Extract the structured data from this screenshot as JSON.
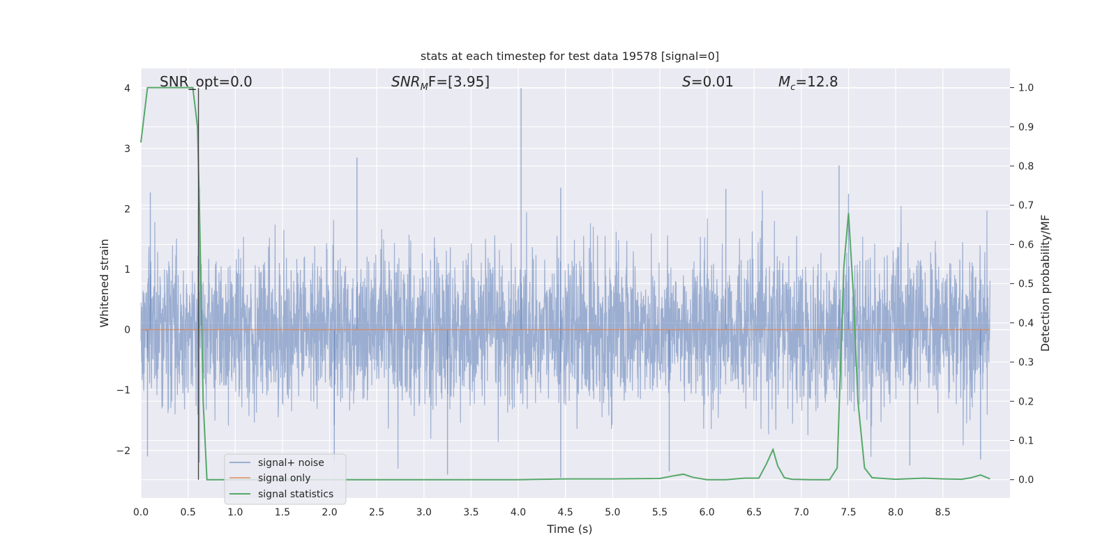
{
  "chart_data": {
    "type": "line",
    "title": "stats at each timestep for test data 19578 [signal=0]",
    "xlabel": "Time (s)",
    "ylabel": "Whitened strain",
    "y2label": "Detection probability/MF",
    "xlim": [
      0.0,
      9.0
    ],
    "ylim": [
      -2.8,
      4.3
    ],
    "y2lim": [
      -0.048,
      1.048
    ],
    "x_ticks": [
      0.0,
      0.5,
      1.0,
      1.5,
      2.0,
      2.5,
      3.0,
      3.5,
      4.0,
      4.5,
      5.0,
      5.5,
      6.0,
      6.5,
      7.0,
      7.5,
      8.0,
      8.5
    ],
    "x_tick_labels": [
      "0.0",
      "0.5",
      "1.0",
      "1.5",
      "2.0",
      "2.5",
      "3.0",
      "3.5",
      "4.0",
      "4.5",
      "5.0",
      "5.5",
      "6.0",
      "6.5",
      "7.0",
      "7.5",
      "8.0",
      "8.5"
    ],
    "y_ticks": [
      -2,
      -1,
      0,
      1,
      2,
      3,
      4
    ],
    "y_tick_labels": [
      "−2",
      "−1",
      "0",
      "1",
      "2",
      "3",
      "4"
    ],
    "y2_ticks": [
      0.0,
      0.1,
      0.2,
      0.3,
      0.4,
      0.5,
      0.6,
      0.7,
      0.8,
      0.9,
      1.0
    ],
    "y2_tick_labels": [
      "0.0",
      "0.1",
      "0.2",
      "0.3",
      "0.4",
      "0.5",
      "0.6",
      "0.7",
      "0.8",
      "0.9",
      "1.0"
    ],
    "grid": true,
    "legend_position": "lower-left",
    "legend": [
      {
        "label": "signal+ noise",
        "color": "#4c72b0"
      },
      {
        "label": "signal only",
        "color": "#dd8452"
      },
      {
        "label": "signal statistics",
        "color": "#55a868"
      }
    ],
    "annotations": {
      "snr_opt": "SNR_opt=0.0",
      "snr_mf_base": "SNR",
      "snr_mf_sub": "M",
      "snr_mf_rest": "F=[3.95]",
      "s_base": "S",
      "s_rest": "=0.01",
      "mc_base": "M",
      "mc_sub": "c",
      "mc_rest": "=12.8"
    },
    "marker_line_x": 0.61,
    "series": [
      {
        "name": "signal+ noise",
        "axis": "left",
        "color": "#4c72b0",
        "description_bound": 1.2,
        "spikes": [
          [
            4.03,
            4.0
          ],
          [
            2.29,
            2.85
          ],
          [
            7.4,
            2.72
          ],
          [
            0.1,
            2.27
          ],
          [
            0.62,
            2.35
          ],
          [
            4.45,
            2.35
          ],
          [
            6.2,
            2.33
          ],
          [
            7.5,
            2.25
          ],
          [
            0.62,
            -2.2
          ],
          [
            5.6,
            -2.35
          ],
          [
            3.25,
            -2.4
          ],
          [
            4.45,
            -2.45
          ],
          [
            8.9,
            -2.15
          ],
          [
            0.07,
            -2.1
          ],
          [
            8.15,
            -2.25
          ],
          [
            2.05,
            -2.2
          ]
        ]
      },
      {
        "name": "signal only",
        "axis": "left",
        "color": "#dd8452",
        "x": [
          0.0,
          9.0
        ],
        "y": [
          0.0,
          0.0
        ]
      },
      {
        "name": "signal statistics",
        "axis": "right",
        "color": "#55a868",
        "x": [
          0.0,
          0.07,
          0.12,
          0.2,
          0.3,
          0.4,
          0.5,
          0.55,
          0.6,
          0.62,
          0.66,
          0.7,
          1.0,
          2.0,
          3.0,
          4.0,
          4.5,
          5.0,
          5.5,
          5.65,
          5.75,
          5.85,
          6.0,
          6.2,
          6.4,
          6.55,
          6.63,
          6.7,
          6.75,
          6.82,
          6.9,
          7.1,
          7.3,
          7.38,
          7.45,
          7.5,
          7.55,
          7.6,
          7.67,
          7.75,
          8.0,
          8.3,
          8.5,
          8.7,
          8.8,
          8.9,
          9.0
        ],
        "y": [
          0.86,
          1.0,
          1.0,
          1.0,
          1.0,
          1.0,
          1.0,
          1.0,
          0.9,
          0.7,
          0.2,
          0.0,
          0.0,
          0.0,
          0.0,
          0.0,
          0.002,
          0.002,
          0.003,
          0.01,
          0.014,
          0.006,
          0.0,
          0.0,
          0.004,
          0.004,
          0.04,
          0.077,
          0.035,
          0.005,
          0.001,
          0.0,
          0.0,
          0.03,
          0.54,
          0.68,
          0.48,
          0.2,
          0.03,
          0.005,
          0.001,
          0.004,
          0.002,
          0.001,
          0.005,
          0.012,
          0.002
        ]
      }
    ]
  }
}
